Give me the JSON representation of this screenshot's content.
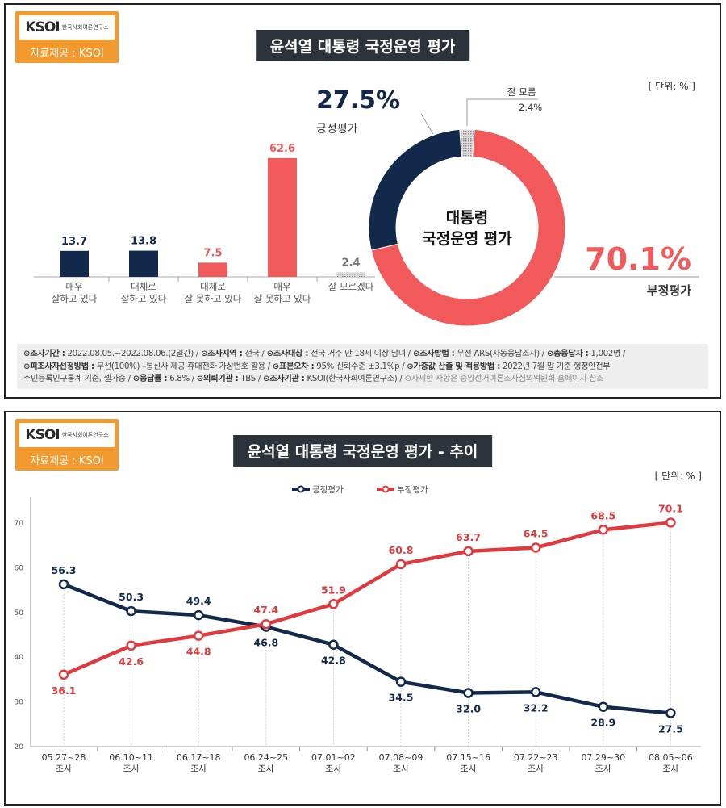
{
  "logo": {
    "mark": "KSOI",
    "org": "한국사회여론연구소",
    "source": "자료제공 : KSOI",
    "color": "#f29a2e"
  },
  "colors": {
    "positive": "#13294b",
    "negative": "#f2595a",
    "unknown": "#aaaaaa",
    "line_negative": "#e03a3e"
  },
  "top": {
    "title": "윤석열 대통령 국정운영 평가",
    "unit": "[ 단위: % ]",
    "footer": [
      [
        {
          "k": "⊙조사기간 :",
          "v": " 2022.08.05.~2022.08.06.(2일간) / "
        },
        {
          "k": "⊙조사지역 :",
          "v": " 전국 / "
        },
        {
          "k": "⊙조사대상 :",
          "v": " 전국 거주 만 18세 이상 남녀 / "
        },
        {
          "k": "⊙조사방법 :",
          "v": " 무선 ARS(자동응답조사) / "
        },
        {
          "k": "⊙총응답자 :",
          "v": " 1,002명 /"
        }
      ],
      [
        {
          "k": "⊙피조사자선정방법 :",
          "v": " 무선(100%) –통신사 제공 휴대전화 가상번호 활용 / "
        },
        {
          "k": "⊙표본오차 :",
          "v": " 95% 신뢰수준 ±3.1%p / "
        },
        {
          "k": "⊙가중값 산출 및 적용방법 :",
          "v": " 2022년 7월 말 기준 행정안전부"
        }
      ],
      [
        {
          "k": "",
          "v": "주민등록인구통계 기준, 셀가중 / "
        },
        {
          "k": "⊙응답률 :",
          "v": " 6.8% / "
        },
        {
          "k": "⊙의뢰기관 :",
          "v": " TBS / "
        },
        {
          "k": "⊙조사기관 :",
          "v": " KSOI(한국사회여론연구소) / "
        },
        {
          "k": "",
          "v": "⊙자세한 사항은 중앙선거여론조사심의위원회 홈페이지 참조"
        }
      ]
    ]
  },
  "chart_data": [
    {
      "type": "bar",
      "categories": [
        [
          "매우",
          "잘하고 있다"
        ],
        [
          "대체로",
          "잘하고 있다"
        ],
        [
          "대체로",
          "잘 못하고 있다"
        ],
        [
          "매우",
          "잘 못하고 있다"
        ],
        [
          "잘 모르겠다"
        ]
      ],
      "values": [
        13.7,
        13.8,
        7.5,
        62.6,
        2.4
      ],
      "value_labels": [
        "13.7",
        "13.8",
        "7.5",
        "62.6",
        "2.4"
      ],
      "bar_colors": [
        "#13294b",
        "#13294b",
        "#f2595a",
        "#f2595a",
        "#aaaaaa"
      ]
    },
    {
      "type": "pie",
      "center_label": [
        "대통령",
        "국정운영 평가"
      ],
      "slices": [
        {
          "name": "잘 모름",
          "value": 2.4,
          "label": "2.4%",
          "color": "#aaaaaa"
        },
        {
          "name": "부정평가",
          "value": 70.1,
          "label": "70.1%",
          "color": "#f2595a"
        },
        {
          "name": "긍정평가",
          "value": 27.5,
          "label": "27.5%",
          "color": "#13294b"
        }
      ]
    },
    {
      "type": "line",
      "title": "윤석열 대통령 국정운영 평가 - 추이",
      "unit": "[ 단위: % ]",
      "categories": [
        [
          "05.27~28",
          "조사"
        ],
        [
          "06.10~11",
          "조사"
        ],
        [
          "06.17~18",
          "조사"
        ],
        [
          "06.24~25",
          "조사"
        ],
        [
          "07.01~02",
          "조사"
        ],
        [
          "07.08~09",
          "조사"
        ],
        [
          "07.15~16",
          "조사"
        ],
        [
          "07.22~23",
          "조사"
        ],
        [
          "07.29~30",
          "조사"
        ],
        [
          "08.05~06",
          "조사"
        ]
      ],
      "ylim": [
        20,
        70
      ],
      "yticks": [
        20,
        30,
        40,
        50,
        60,
        70
      ],
      "legend": "top",
      "series": [
        {
          "name": "긍정평가",
          "color": "#13294b",
          "values": [
            56.3,
            50.3,
            49.4,
            46.8,
            42.8,
            34.5,
            32.0,
            32.2,
            28.9,
            27.5
          ],
          "labels": [
            "56.3",
            "50.3",
            "49.4",
            "46.8",
            "42.8",
            "34.5",
            "32.0",
            "32.2",
            "28.9",
            "27.5"
          ]
        },
        {
          "name": "부정평가",
          "color": "#e03a3e",
          "values": [
            36.1,
            42.6,
            44.8,
            47.4,
            51.9,
            60.8,
            63.7,
            64.5,
            68.5,
            70.1
          ],
          "labels": [
            "36.1",
            "42.6",
            "44.8",
            "47.4",
            "51.9",
            "60.8",
            "63.7",
            "64.5",
            "68.5",
            "70.1"
          ]
        }
      ]
    }
  ]
}
